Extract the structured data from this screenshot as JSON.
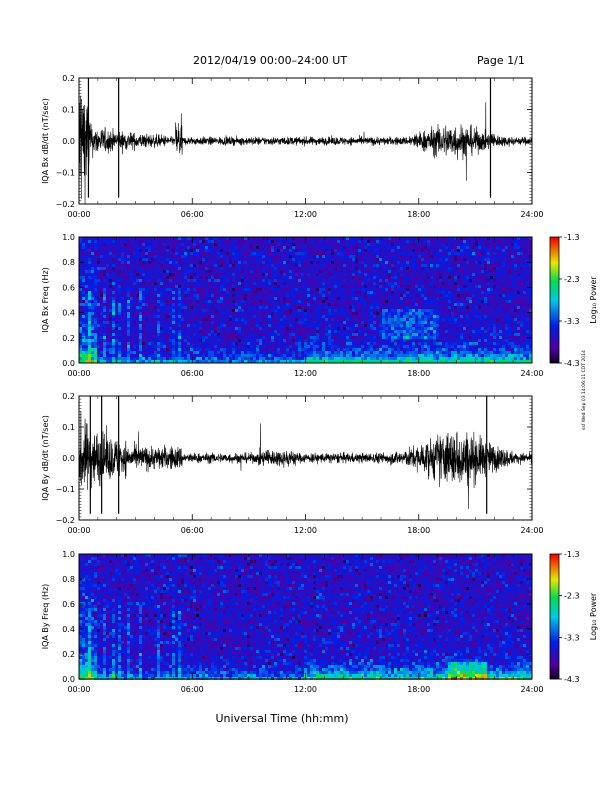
{
  "header": {
    "title": "2012/04/19   00:00–24:00 UT",
    "page": "Page 1/1"
  },
  "xlabel": "Universal Time (hh:mm)",
  "stamp": "ssf Wed Sep 03 14:06:11 CDT 2014",
  "colorbar_label": "Log₁₀ Power",
  "colorbar_ticks": [
    "-1.3",
    "-2.3",
    "-3.3",
    "-4.3"
  ],
  "chart_data": [
    {
      "type": "line",
      "ylabel": "IQA Bx dB/dt (nT/sec)",
      "x_ticks": [
        "00:00",
        "06:00",
        "12:00",
        "18:00",
        "24:00"
      ],
      "y_ticks": [
        "0.2",
        "0.1",
        "0.0",
        "−0.1",
        "−0.2"
      ],
      "xlim_hours": [
        0,
        24
      ],
      "ylim": [
        -0.2,
        0.2
      ],
      "grid": false
    },
    {
      "type": "heatmap",
      "ylabel": "IQA Bx Freq (Hz)",
      "x_ticks": [
        "00:00",
        "06:00",
        "12:00",
        "18:00",
        "24:00"
      ],
      "y_ticks": [
        "1.0",
        "0.8",
        "0.6",
        "0.4",
        "0.2",
        "0.0"
      ],
      "xlim_hours": [
        0,
        24
      ],
      "ylim": [
        0.0,
        1.0
      ],
      "colorbar_range": [
        -4.3,
        -1.3
      ]
    },
    {
      "type": "line",
      "ylabel": "IQA By dB/dt (nT/sec)",
      "x_ticks": [
        "00:00",
        "06:00",
        "12:00",
        "18:00",
        "24:00"
      ],
      "y_ticks": [
        "0.2",
        "0.1",
        "0.0",
        "−0.1",
        "−0.2"
      ],
      "xlim_hours": [
        0,
        24
      ],
      "ylim": [
        -0.2,
        0.2
      ],
      "grid": false
    },
    {
      "type": "heatmap",
      "ylabel": "IQA By Freq (Hz)",
      "x_ticks": [
        "00:00",
        "06:00",
        "12:00",
        "18:00",
        "24:00"
      ],
      "y_ticks": [
        "1.0",
        "0.8",
        "0.6",
        "0.4",
        "0.2",
        "0.0"
      ],
      "xlim_hours": [
        0,
        24
      ],
      "ylim": [
        0.0,
        1.0
      ],
      "colorbar_range": [
        -4.3,
        -1.3
      ]
    }
  ]
}
